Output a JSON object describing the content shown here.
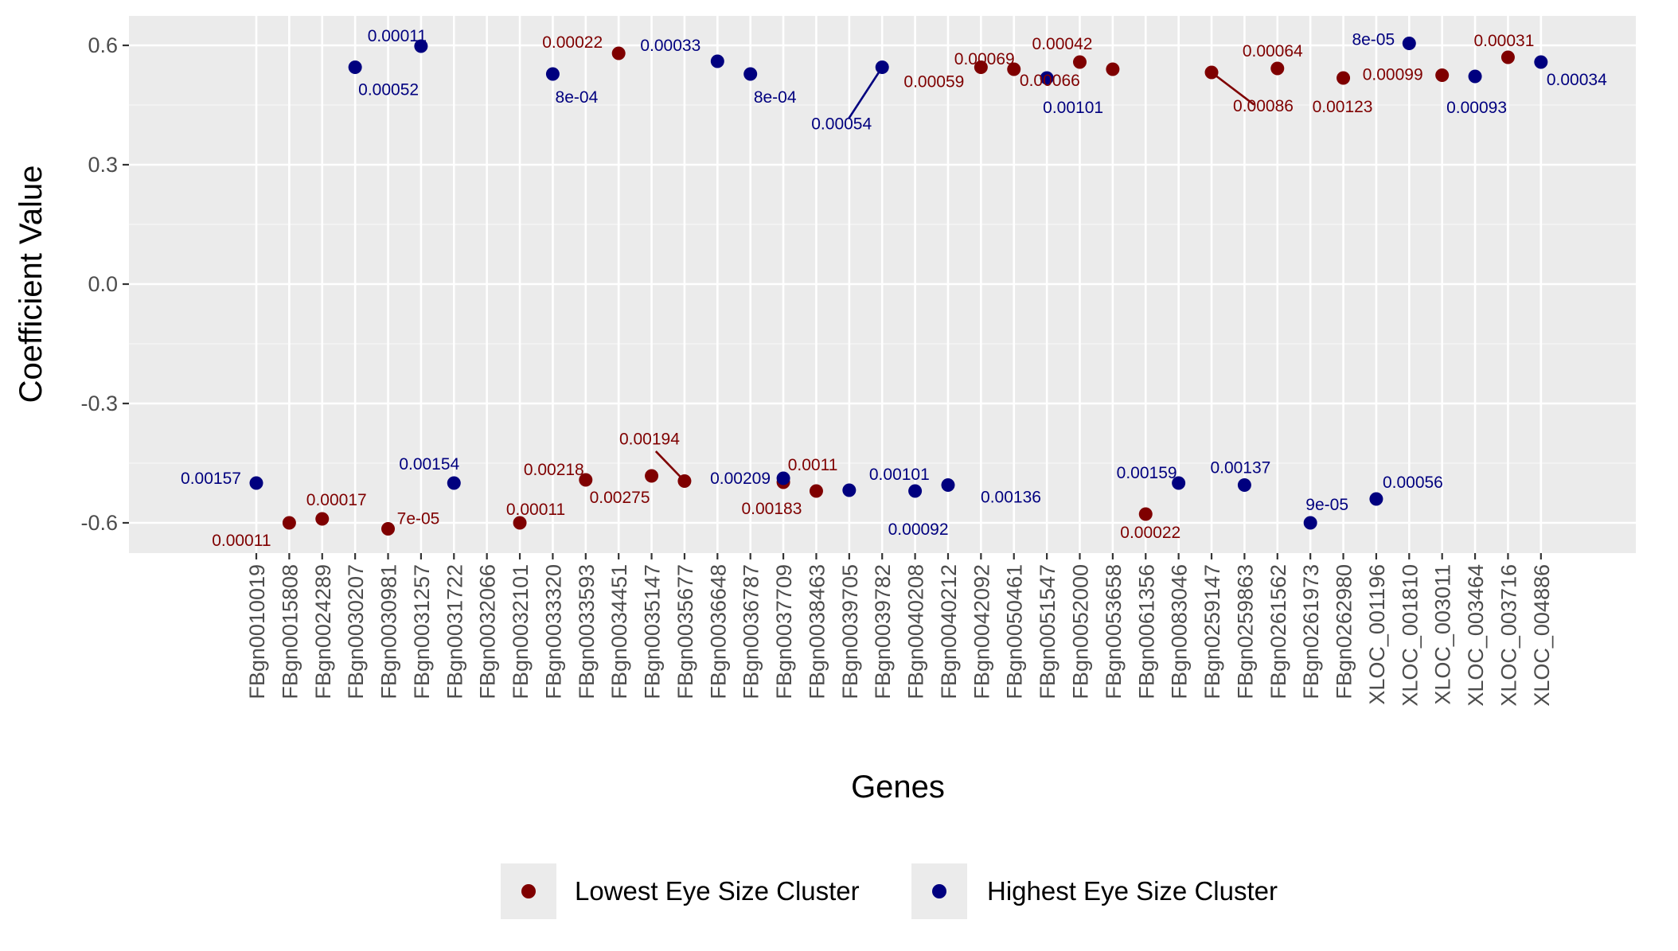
{
  "chart_data": {
    "type": "scatter",
    "xlabel": "Genes",
    "ylabel": "Coefficient Value",
    "ylim": [
      -0.68,
      0.665
    ],
    "yticks": [
      "0.6",
      "0.3",
      "0.0",
      "-0.3",
      "-0.6"
    ],
    "ytick_values": [
      0.6,
      0.3,
      0.0,
      -0.3,
      -0.6
    ],
    "grid": true,
    "legend_position": "bottom",
    "categories": [
      "FBgn0010019",
      "FBgn0015808",
      "FBgn0024289",
      "FBgn0030207",
      "FBgn0030981",
      "FBgn0031257",
      "FBgn0031722",
      "FBgn0032066",
      "FBgn0032101",
      "FBgn0033320",
      "FBgn0033593",
      "FBgn0034451",
      "FBgn0035147",
      "FBgn0035677",
      "FBgn0036648",
      "FBgn0036787",
      "FBgn0037709",
      "FBgn0038463",
      "FBgn0039705",
      "FBgn0039782",
      "FBgn0040208",
      "FBgn0040212",
      "FBgn0042092",
      "FBgn0050461",
      "FBgn0051547",
      "FBgn0052000",
      "FBgn0053658",
      "FBgn0061356",
      "FBgn0083046",
      "FBgn0259147",
      "FBgn0259863",
      "FBgn0261562",
      "FBgn0261973",
      "FBgn0262980",
      "XLOC_001196",
      "XLOC_001810",
      "XLOC_003011",
      "XLOC_003464",
      "XLOC_003716",
      "XLOC_004886"
    ],
    "series": [
      {
        "name": "Lowest Eye Size Cluster",
        "color": "#7f0000",
        "points": [
          {
            "x": "FBgn0015808",
            "y": -0.6,
            "label": "0.00011"
          },
          {
            "x": "FBgn0024289",
            "y": -0.59,
            "label": "0.00017"
          },
          {
            "x": "FBgn0030981",
            "y": -0.615,
            "label": "7e-05"
          },
          {
            "x": "FBgn0032101",
            "y": -0.6,
            "label": "0.00011"
          },
          {
            "x": "FBgn0033593",
            "y": -0.492,
            "label": "0.00218"
          },
          {
            "x": "FBgn0034451",
            "y": 0.58,
            "label": "0.00022"
          },
          {
            "x": "FBgn0035147",
            "y": -0.482,
            "label": "0.00275"
          },
          {
            "x": "FBgn0035677",
            "y": -0.495,
            "label": "0.00194"
          },
          {
            "x": "FBgn0037709",
            "y": -0.498,
            "label": "0.0011"
          },
          {
            "x": "FBgn0038463",
            "y": -0.52,
            "label": "0.00183"
          },
          {
            "x": "FBgn0042092",
            "y": 0.545,
            "label": "0.00059"
          },
          {
            "x": "FBgn0050461",
            "y": 0.54,
            "label": "0.00069"
          },
          {
            "x": "FBgn0052000",
            "y": 0.558,
            "label": "0.00042"
          },
          {
            "x": "FBgn0053658",
            "y": 0.54,
            "label": "0.00066"
          },
          {
            "x": "FBgn0061356",
            "y": -0.578,
            "label": "0.00022"
          },
          {
            "x": "FBgn0259147",
            "y": 0.532,
            "label": "0.00086"
          },
          {
            "x": "FBgn0261562",
            "y": 0.542,
            "label": "0.00064"
          },
          {
            "x": "FBgn0262980",
            "y": 0.518,
            "label": "0.00123"
          },
          {
            "x": "XLOC_003011",
            "y": 0.525,
            "label": "0.00099"
          },
          {
            "x": "XLOC_003716",
            "y": 0.57,
            "label": "0.00031"
          }
        ]
      },
      {
        "name": "Highest Eye Size Cluster",
        "color": "#00007f",
        "points": [
          {
            "x": "FBgn0010019",
            "y": -0.5,
            "label": "0.00157"
          },
          {
            "x": "FBgn0030207",
            "y": 0.545,
            "label": "0.00052"
          },
          {
            "x": "FBgn0031257",
            "y": 0.598,
            "label": "0.00011"
          },
          {
            "x": "FBgn0031722",
            "y": -0.5,
            "label": "0.00154"
          },
          {
            "x": "FBgn0033320",
            "y": 0.528,
            "label": "8e-04"
          },
          {
            "x": "FBgn0036648",
            "y": 0.56,
            "label": "0.00033"
          },
          {
            "x": "FBgn0036787",
            "y": 0.528,
            "label": "8e-04"
          },
          {
            "x": "FBgn0037709",
            "y": -0.488,
            "label": "0.00209"
          },
          {
            "x": "FBgn0039705",
            "y": -0.518,
            "label": "0.00101"
          },
          {
            "x": "FBgn0039782",
            "y": 0.545,
            "label": "0.00054"
          },
          {
            "x": "FBgn0040208",
            "y": -0.52,
            "label": "0.00092"
          },
          {
            "x": "FBgn0040212",
            "y": -0.505,
            "label": "0.00136"
          },
          {
            "x": "FBgn0051547",
            "y": 0.518,
            "label": "0.00101"
          },
          {
            "x": "FBgn0083046",
            "y": -0.5,
            "label": "0.00159"
          },
          {
            "x": "FBgn0259863",
            "y": -0.505,
            "label": "0.00137"
          },
          {
            "x": "FBgn0261973",
            "y": -0.6,
            "label": "9e-05"
          },
          {
            "x": "XLOC_001196",
            "y": -0.54,
            "label": "0.00056"
          },
          {
            "x": "XLOC_001810",
            "y": 0.605,
            "label": "8e-05"
          },
          {
            "x": "XLOC_003464",
            "y": 0.522,
            "label": "0.00093"
          },
          {
            "x": "XLOC_004886",
            "y": 0.558,
            "label": "0.00034"
          }
        ]
      }
    ]
  }
}
